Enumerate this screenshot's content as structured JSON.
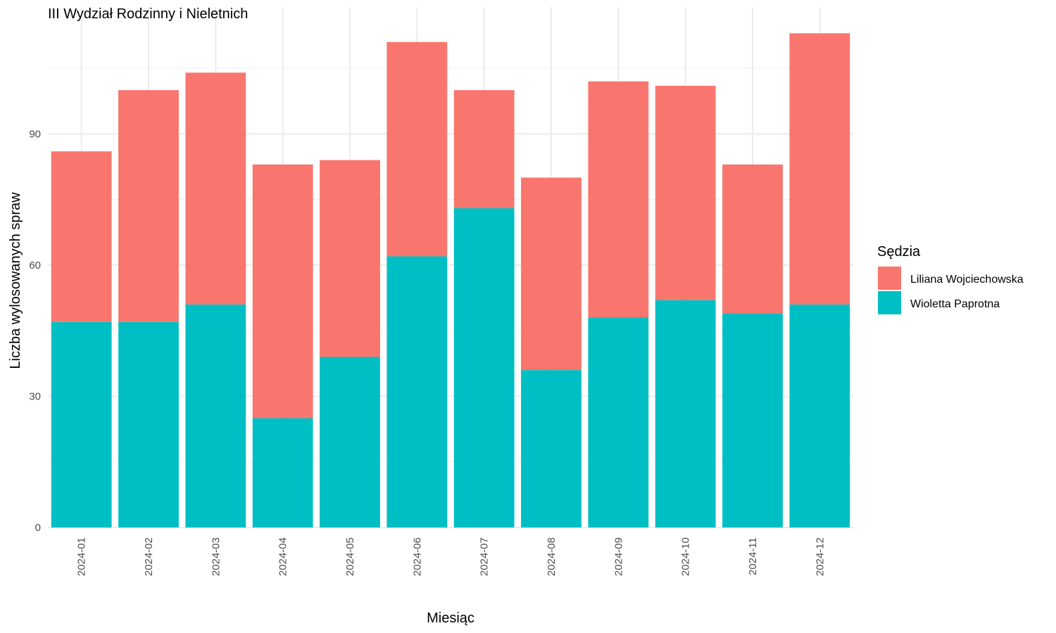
{
  "chart_data": {
    "type": "bar",
    "stacked": true,
    "title": "III Wydział Rodzinny i Nieletnich",
    "xlabel": "Miesiąc",
    "ylabel": "Liczba wylosowanych spraw",
    "categories": [
      "2024-01",
      "2024-02",
      "2024-03",
      "2024-04",
      "2024-05",
      "2024-06",
      "2024-07",
      "2024-08",
      "2024-09",
      "2024-10",
      "2024-11",
      "2024-12"
    ],
    "series": [
      {
        "name": "Wioletta Paprotna",
        "color": "#00BFC4",
        "values": [
          47,
          47,
          51,
          25,
          39,
          62,
          73,
          36,
          48,
          52,
          49,
          51
        ]
      },
      {
        "name": "Liliana Wojciechowska",
        "color": "#F8766D",
        "values": [
          39,
          53,
          53,
          58,
          45,
          49,
          27,
          44,
          54,
          49,
          34,
          62
        ]
      }
    ],
    "ylim": [
      0,
      119
    ],
    "yticks": [
      0,
      30,
      60,
      90
    ],
    "grid": true,
    "legend": {
      "title": "Sędzia",
      "position": "right",
      "entries": [
        "Liliana Wojciechowska",
        "Wioletta Paprotna"
      ]
    }
  }
}
